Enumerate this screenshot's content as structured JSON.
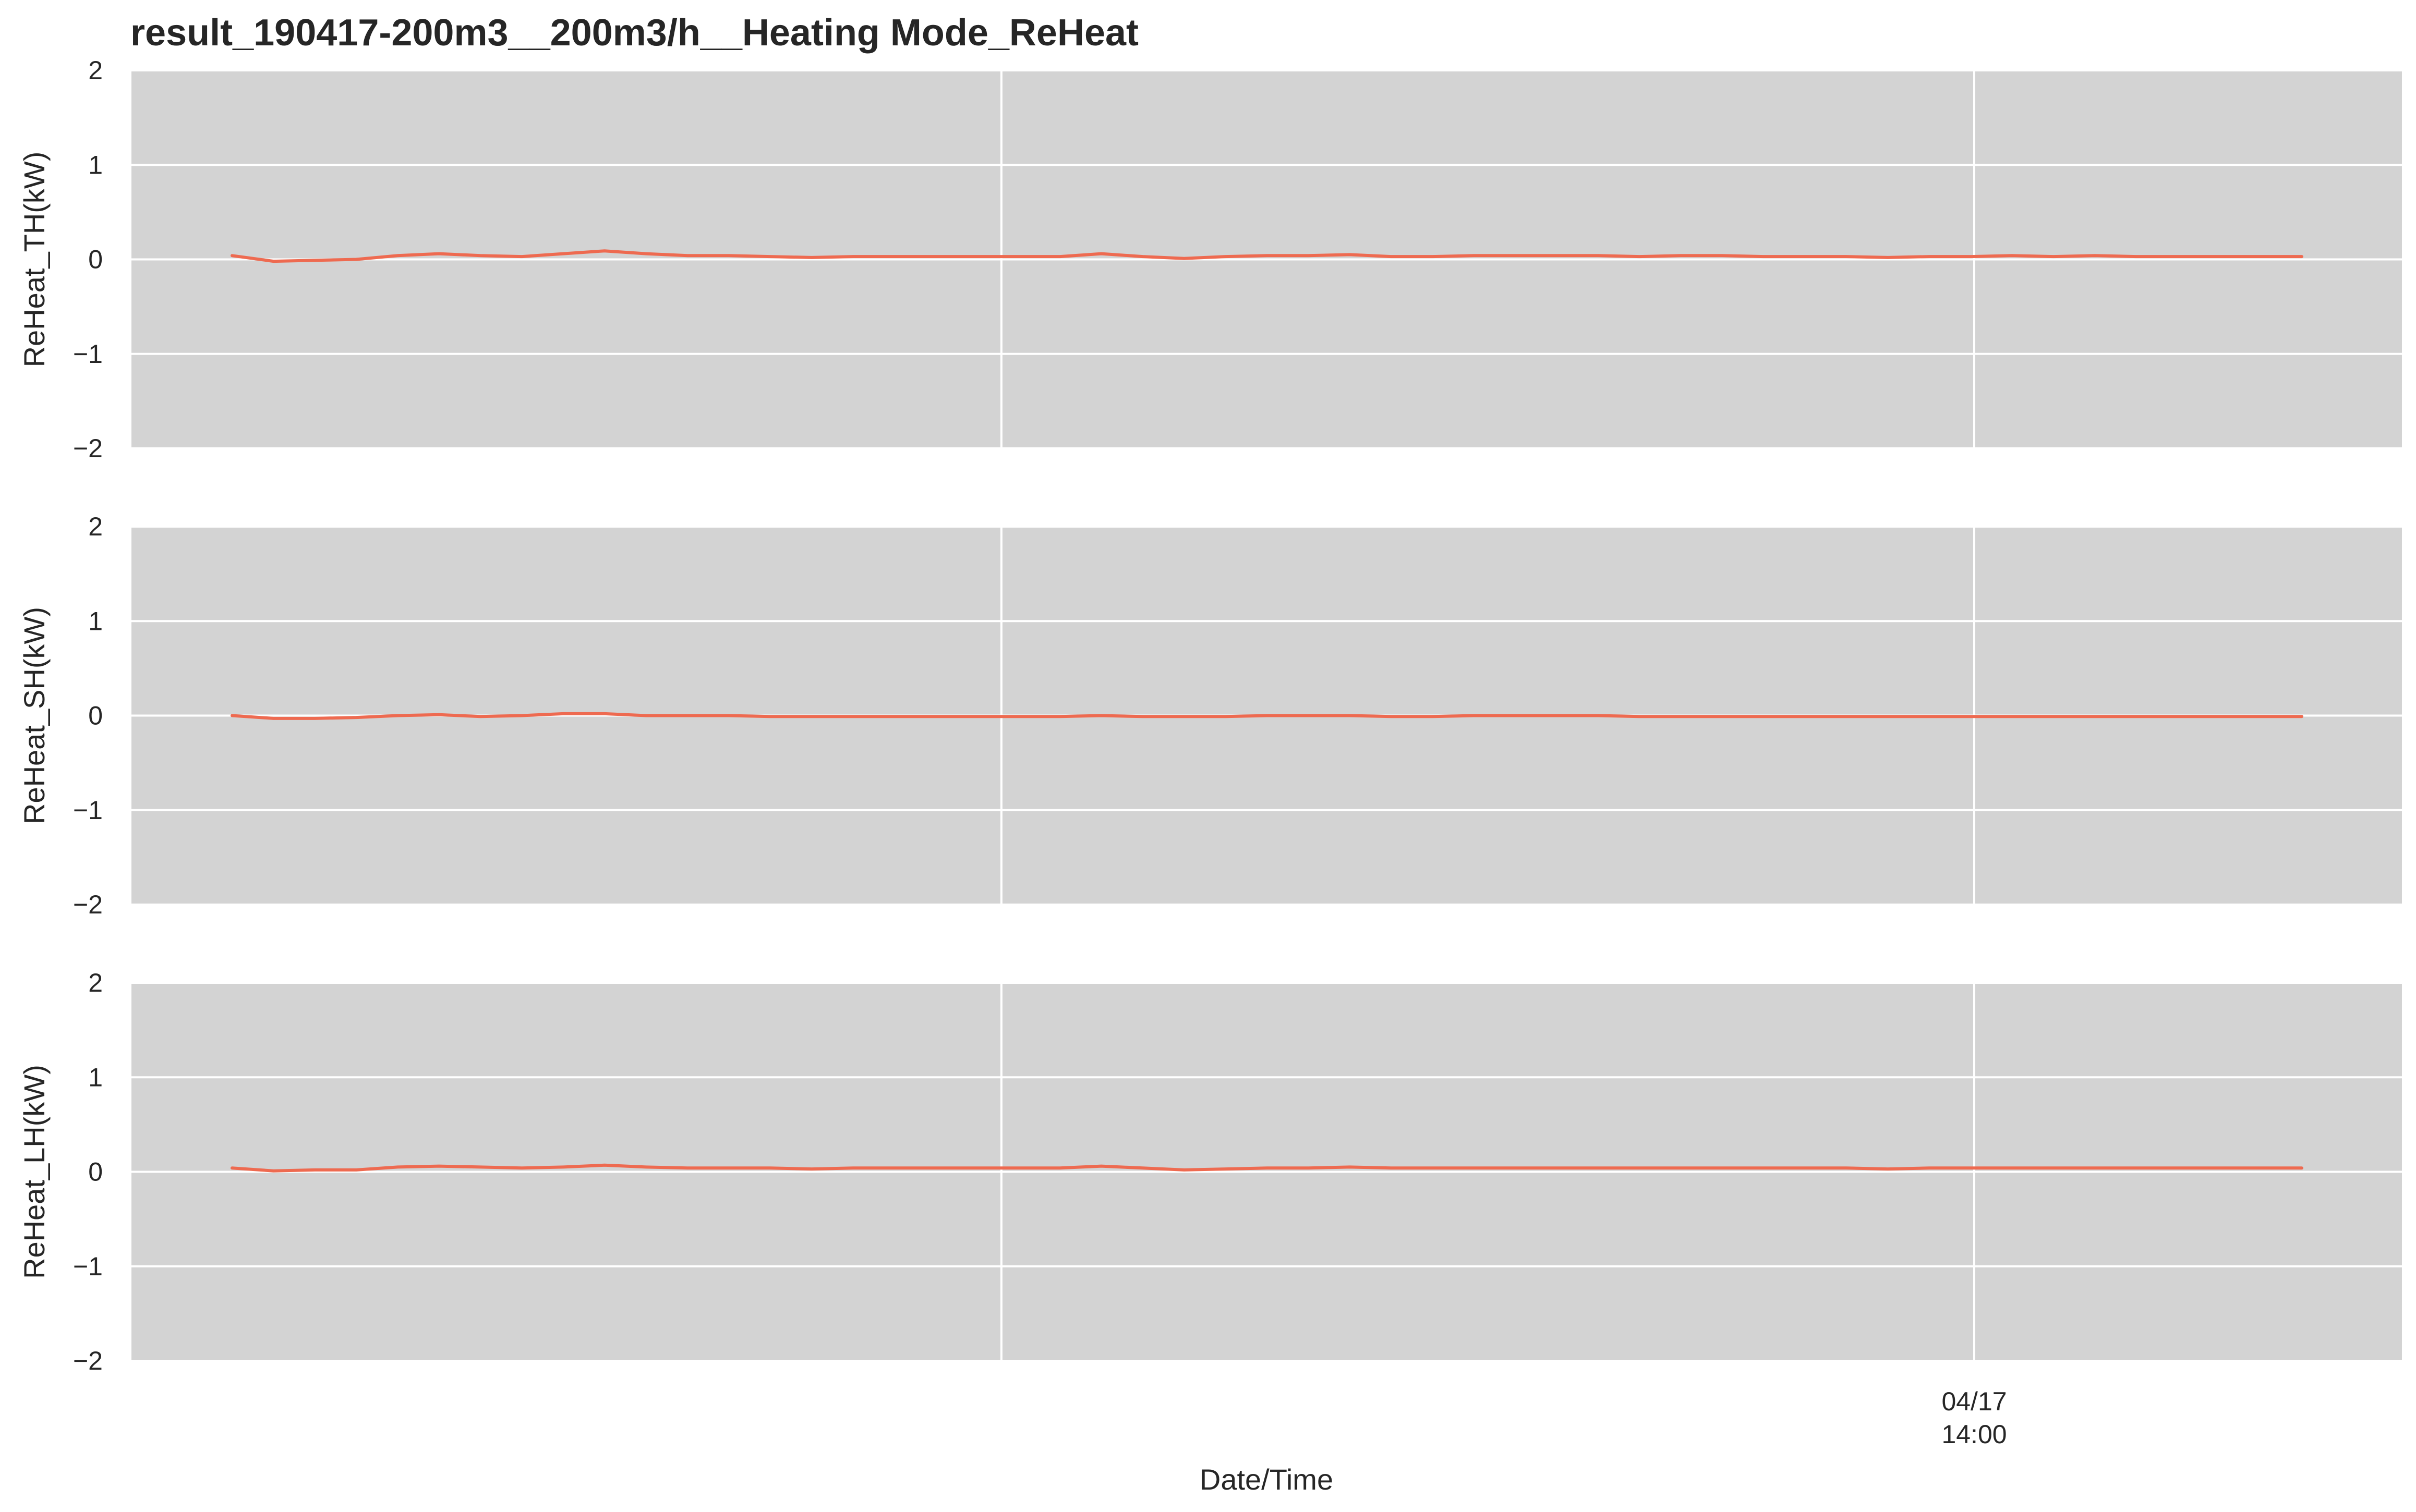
{
  "title": "result_190417-200m3__200m3/h__Heating Mode_ReHeat",
  "colors": {
    "line": "#EE6A50",
    "panel_background": "#D3D3D3",
    "grid": "#FFFFFF",
    "text": "#262626"
  },
  "chart_data": [
    {
      "type": "line",
      "ylabel": "ReHeat_TH(kW)",
      "ylim": [
        -2,
        2
      ],
      "yticks": [
        2,
        1,
        0,
        -1,
        -2
      ],
      "ytick_labels": [
        "2",
        "1",
        "0",
        "−1",
        "−2"
      ],
      "grid": true,
      "x": [
        0,
        0.02,
        0.04,
        0.06,
        0.08,
        0.1,
        0.12,
        0.14,
        0.16,
        0.18,
        0.2,
        0.22,
        0.24,
        0.26,
        0.28,
        0.3,
        0.32,
        0.34,
        0.36,
        0.38,
        0.4,
        0.42,
        0.44,
        0.46,
        0.48,
        0.5,
        0.52,
        0.54,
        0.56,
        0.58,
        0.6,
        0.62,
        0.64,
        0.66,
        0.68,
        0.7,
        0.72,
        0.74,
        0.76,
        0.78,
        0.8,
        0.82,
        0.84,
        0.86,
        0.88,
        0.9,
        0.92,
        0.94,
        0.96,
        0.98,
        1.0
      ],
      "values": [
        0.04,
        -0.02,
        -0.01,
        0.0,
        0.04,
        0.06,
        0.04,
        0.03,
        0.06,
        0.09,
        0.06,
        0.04,
        0.04,
        0.03,
        0.02,
        0.03,
        0.03,
        0.03,
        0.03,
        0.03,
        0.03,
        0.06,
        0.03,
        0.01,
        0.03,
        0.04,
        0.04,
        0.05,
        0.03,
        0.03,
        0.04,
        0.04,
        0.04,
        0.04,
        0.03,
        0.04,
        0.04,
        0.03,
        0.03,
        0.03,
        0.02,
        0.03,
        0.03,
        0.04,
        0.03,
        0.04,
        0.03,
        0.03,
        0.03,
        0.03,
        0.03
      ]
    },
    {
      "type": "line",
      "ylabel": "ReHeat_SH(kW)",
      "ylim": [
        -2,
        2
      ],
      "yticks": [
        2,
        1,
        0,
        -1,
        -2
      ],
      "ytick_labels": [
        "2",
        "1",
        "0",
        "−1",
        "−2"
      ],
      "grid": true,
      "x": [
        0,
        0.02,
        0.04,
        0.06,
        0.08,
        0.1,
        0.12,
        0.14,
        0.16,
        0.18,
        0.2,
        0.22,
        0.24,
        0.26,
        0.28,
        0.3,
        0.32,
        0.34,
        0.36,
        0.38,
        0.4,
        0.42,
        0.44,
        0.46,
        0.48,
        0.5,
        0.52,
        0.54,
        0.56,
        0.58,
        0.6,
        0.62,
        0.64,
        0.66,
        0.68,
        0.7,
        0.72,
        0.74,
        0.76,
        0.78,
        0.8,
        0.82,
        0.84,
        0.86,
        0.88,
        0.9,
        0.92,
        0.94,
        0.96,
        0.98,
        1.0
      ],
      "values": [
        0.0,
        -0.03,
        -0.03,
        -0.02,
        0.0,
        0.01,
        -0.01,
        0.0,
        0.02,
        0.02,
        0.0,
        0.0,
        0.0,
        -0.01,
        -0.01,
        -0.01,
        -0.01,
        -0.01,
        -0.01,
        -0.01,
        -0.01,
        0.0,
        -0.01,
        -0.01,
        -0.01,
        0.0,
        0.0,
        0.0,
        -0.01,
        -0.01,
        0.0,
        0.0,
        0.0,
        0.0,
        -0.01,
        -0.01,
        -0.01,
        -0.01,
        -0.01,
        -0.01,
        -0.01,
        -0.01,
        -0.01,
        -0.01,
        -0.01,
        -0.01,
        -0.01,
        -0.01,
        -0.01,
        -0.01,
        -0.01
      ]
    },
    {
      "type": "line",
      "ylabel": "ReHeat_LH(kW)",
      "ylim": [
        -2,
        2
      ],
      "yticks": [
        2,
        1,
        0,
        -1,
        -2
      ],
      "ytick_labels": [
        "2",
        "1",
        "0",
        "−1",
        "−2"
      ],
      "grid": true,
      "xlabel": "Date/Time",
      "xtick_label_line1": "04/17",
      "xtick_label_line2": "14:00",
      "x": [
        0,
        0.02,
        0.04,
        0.06,
        0.08,
        0.1,
        0.12,
        0.14,
        0.16,
        0.18,
        0.2,
        0.22,
        0.24,
        0.26,
        0.28,
        0.3,
        0.32,
        0.34,
        0.36,
        0.38,
        0.4,
        0.42,
        0.44,
        0.46,
        0.48,
        0.5,
        0.52,
        0.54,
        0.56,
        0.58,
        0.6,
        0.62,
        0.64,
        0.66,
        0.68,
        0.7,
        0.72,
        0.74,
        0.76,
        0.78,
        0.8,
        0.82,
        0.84,
        0.86,
        0.88,
        0.9,
        0.92,
        0.94,
        0.96,
        0.98,
        1.0
      ],
      "values": [
        0.04,
        0.01,
        0.02,
        0.02,
        0.05,
        0.06,
        0.05,
        0.04,
        0.05,
        0.07,
        0.05,
        0.04,
        0.04,
        0.04,
        0.03,
        0.04,
        0.04,
        0.04,
        0.04,
        0.04,
        0.04,
        0.06,
        0.04,
        0.02,
        0.03,
        0.04,
        0.04,
        0.05,
        0.04,
        0.04,
        0.04,
        0.04,
        0.04,
        0.04,
        0.04,
        0.04,
        0.04,
        0.04,
        0.04,
        0.04,
        0.03,
        0.04,
        0.04,
        0.04,
        0.04,
        0.04,
        0.04,
        0.04,
        0.04,
        0.04,
        0.04
      ]
    }
  ]
}
